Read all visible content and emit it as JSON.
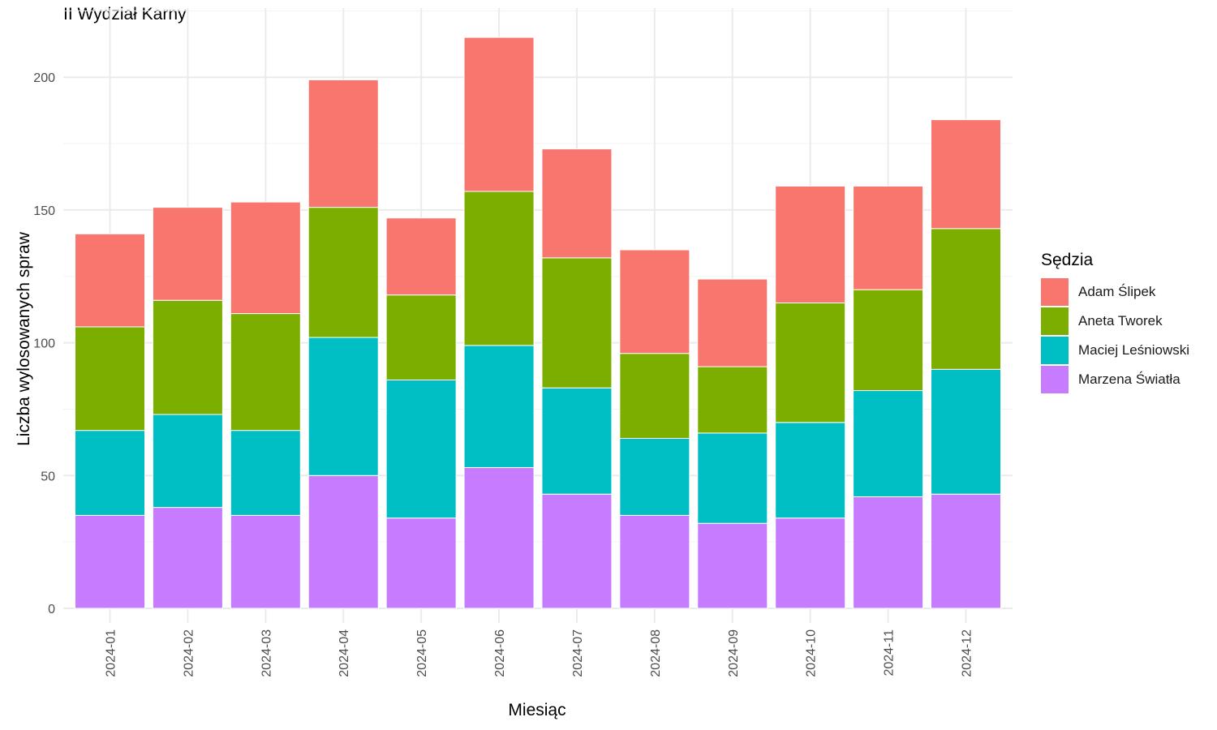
{
  "chart_data": {
    "type": "bar",
    "stacked": true,
    "title": "II Wydział Karny",
    "xlabel": "Miesiąc",
    "ylabel": "Liczba wylosowanych spraw",
    "ylim": [
      0,
      225
    ],
    "yticks": [
      0,
      50,
      100,
      150,
      200
    ],
    "grid": true,
    "legend_position": "right",
    "legend_title": "Sędzia",
    "categories": [
      "2024-01",
      "2024-02",
      "2024-03",
      "2024-04",
      "2024-05",
      "2024-06",
      "2024-07",
      "2024-08",
      "2024-09",
      "2024-10",
      "2024-11",
      "2024-12"
    ],
    "series": [
      {
        "name": "Marzena Światła",
        "color": "#C77CFF",
        "values": [
          35,
          38,
          35,
          50,
          34,
          53,
          43,
          35,
          32,
          34,
          42,
          43
        ]
      },
      {
        "name": "Maciej Leśniowski",
        "color": "#00BFC4",
        "values": [
          32,
          35,
          32,
          52,
          52,
          46,
          40,
          29,
          34,
          36,
          40,
          47
        ]
      },
      {
        "name": "Aneta Tworek",
        "color": "#7CAE00",
        "values": [
          39,
          43,
          44,
          49,
          32,
          58,
          49,
          32,
          25,
          45,
          38,
          53
        ]
      },
      {
        "name": "Adam Ślipek",
        "color": "#F8766D",
        "values": [
          35,
          35,
          42,
          48,
          29,
          58,
          41,
          39,
          33,
          44,
          39,
          41
        ]
      }
    ],
    "legend_order": [
      "Adam Ślipek",
      "Aneta Tworek",
      "Maciej Leśniowski",
      "Marzena Światła"
    ]
  }
}
